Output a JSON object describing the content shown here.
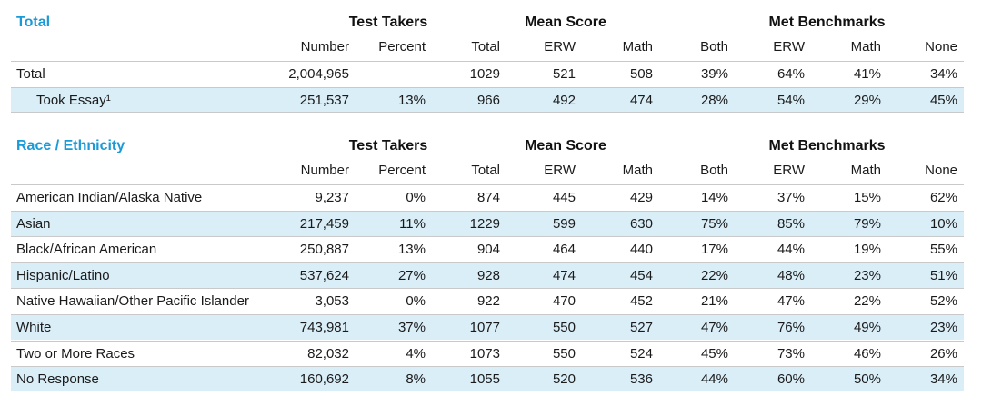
{
  "columns": {
    "group_test_takers": "Test Takers",
    "group_mean_score": "Mean Score",
    "group_met_benchmarks": "Met Benchmarks",
    "sub": [
      "Number",
      "Percent",
      "Total",
      "ERW",
      "Math",
      "Both",
      "ERW",
      "Math",
      "None"
    ]
  },
  "total_section": {
    "title": "Total",
    "rows": [
      {
        "label": "Total",
        "values": [
          "2,004,965",
          "",
          "1029",
          "521",
          "508",
          "39%",
          "64%",
          "41%",
          "34%"
        ]
      },
      {
        "label": "Took Essay¹",
        "values": [
          "251,537",
          "13%",
          "966",
          "492",
          "474",
          "28%",
          "54%",
          "29%",
          "45%"
        ]
      }
    ]
  },
  "race_section": {
    "title": "Race / Ethnicity",
    "rows": [
      {
        "label": "American Indian/Alaska Native",
        "values": [
          "9,237",
          "0%",
          "874",
          "445",
          "429",
          "14%",
          "37%",
          "15%",
          "62%"
        ]
      },
      {
        "label": "Asian",
        "values": [
          "217,459",
          "11%",
          "1229",
          "599",
          "630",
          "75%",
          "85%",
          "79%",
          "10%"
        ]
      },
      {
        "label": "Black/African American",
        "values": [
          "250,887",
          "13%",
          "904",
          "464",
          "440",
          "17%",
          "44%",
          "19%",
          "55%"
        ]
      },
      {
        "label": "Hispanic/Latino",
        "values": [
          "537,624",
          "27%",
          "928",
          "474",
          "454",
          "22%",
          "48%",
          "23%",
          "51%"
        ]
      },
      {
        "label": "Native Hawaiian/Other Pacific Islander",
        "values": [
          "3,053",
          "0%",
          "922",
          "470",
          "452",
          "21%",
          "47%",
          "22%",
          "52%"
        ]
      },
      {
        "label": "White",
        "values": [
          "743,981",
          "37%",
          "1077",
          "550",
          "527",
          "47%",
          "76%",
          "49%",
          "23%"
        ]
      },
      {
        "label": "Two or More Races",
        "values": [
          "82,032",
          "4%",
          "1073",
          "550",
          "524",
          "45%",
          "73%",
          "46%",
          "26%"
        ]
      },
      {
        "label": "No Response",
        "values": [
          "160,692",
          "8%",
          "1055",
          "520",
          "536",
          "44%",
          "60%",
          "50%",
          "34%"
        ]
      }
    ]
  },
  "colors": {
    "title_blue": "#1a9ad6",
    "row_highlight": "#daeef8",
    "rule": "#c9c9c9"
  }
}
